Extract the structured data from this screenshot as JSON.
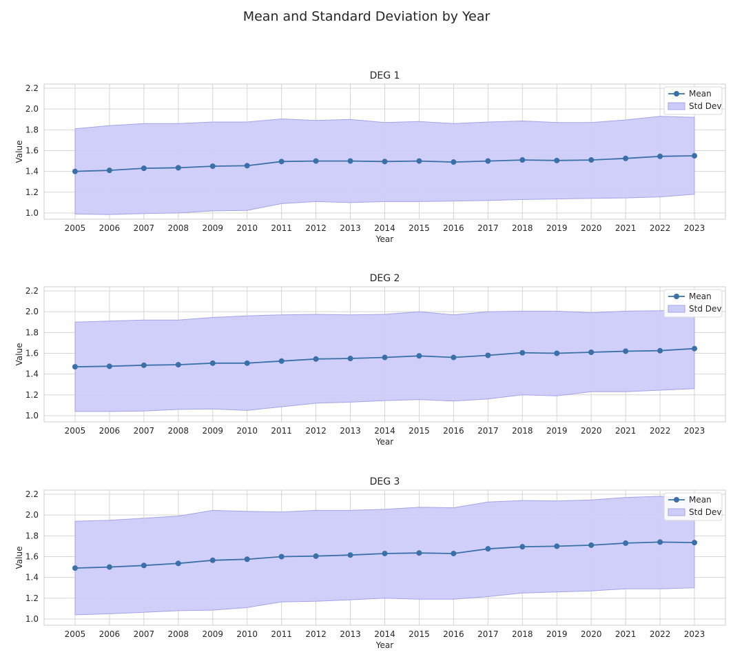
{
  "figure": {
    "title": "Mean and Standard Deviation by Year"
  },
  "colors": {
    "mean_line": "#3a6fa8",
    "std_fill": "#ccccf9",
    "std_edge": "#a3a3e6",
    "grid": "#d5d5d5",
    "axes_edge": "#cccccc"
  },
  "chart_data": [
    {
      "type": "line",
      "title": "DEG 1",
      "xlabel": "Year",
      "ylabel": "Value",
      "x": [
        2005,
        2006,
        2007,
        2008,
        2009,
        2010,
        2011,
        2012,
        2013,
        2014,
        2015,
        2016,
        2017,
        2018,
        2019,
        2020,
        2021,
        2022,
        2023
      ],
      "ylim": [
        0.94,
        2.24
      ],
      "yticks": [
        1.0,
        1.2,
        1.4,
        1.6,
        1.8,
        2.0,
        2.2
      ],
      "grid": true,
      "legend": {
        "position": "top-right",
        "entries": [
          "Mean",
          "Std Dev"
        ]
      },
      "series": [
        {
          "name": "Mean",
          "values": [
            1.4,
            1.41,
            1.43,
            1.435,
            1.45,
            1.455,
            1.495,
            1.5,
            1.5,
            1.495,
            1.5,
            1.49,
            1.5,
            1.51,
            1.505,
            1.51,
            1.525,
            1.545,
            1.55
          ]
        }
      ],
      "band": {
        "name": "Std Dev",
        "upper": [
          1.81,
          1.84,
          1.86,
          1.86,
          1.875,
          1.875,
          1.905,
          1.89,
          1.9,
          1.87,
          1.88,
          1.86,
          1.875,
          1.885,
          1.87,
          1.87,
          1.895,
          1.93,
          1.92
        ],
        "lower": [
          0.99,
          0.985,
          0.995,
          1.0,
          1.02,
          1.025,
          1.09,
          1.11,
          1.1,
          1.11,
          1.11,
          1.115,
          1.12,
          1.13,
          1.135,
          1.14,
          1.145,
          1.155,
          1.18
        ]
      }
    },
    {
      "type": "line",
      "title": "DEG 2",
      "xlabel": "Year",
      "ylabel": "Value",
      "x": [
        2005,
        2006,
        2007,
        2008,
        2009,
        2010,
        2011,
        2012,
        2013,
        2014,
        2015,
        2016,
        2017,
        2018,
        2019,
        2020,
        2021,
        2022,
        2023
      ],
      "ylim": [
        0.94,
        2.24
      ],
      "yticks": [
        1.0,
        1.2,
        1.4,
        1.6,
        1.8,
        2.0,
        2.2
      ],
      "grid": true,
      "legend": {
        "position": "top-right",
        "entries": [
          "Mean",
          "Std Dev"
        ]
      },
      "series": [
        {
          "name": "Mean",
          "values": [
            1.47,
            1.475,
            1.485,
            1.49,
            1.505,
            1.505,
            1.525,
            1.545,
            1.55,
            1.56,
            1.575,
            1.56,
            1.58,
            1.605,
            1.6,
            1.61,
            1.62,
            1.625,
            1.645
          ]
        }
      ],
      "band": {
        "name": "Std Dev",
        "upper": [
          1.9,
          1.91,
          1.92,
          1.92,
          1.945,
          1.96,
          1.97,
          1.975,
          1.97,
          1.975,
          2.0,
          1.97,
          2.0,
          2.005,
          2.005,
          1.99,
          2.005,
          2.01,
          2.025
        ],
        "lower": [
          1.04,
          1.04,
          1.045,
          1.06,
          1.065,
          1.05,
          1.085,
          1.12,
          1.13,
          1.145,
          1.155,
          1.14,
          1.16,
          1.2,
          1.19,
          1.23,
          1.23,
          1.245,
          1.26
        ]
      }
    },
    {
      "type": "line",
      "title": "DEG 3",
      "xlabel": "Year",
      "ylabel": "Value",
      "x": [
        2005,
        2006,
        2007,
        2008,
        2009,
        2010,
        2011,
        2012,
        2013,
        2014,
        2015,
        2016,
        2017,
        2018,
        2019,
        2020,
        2021,
        2022,
        2023
      ],
      "ylim": [
        0.94,
        2.24
      ],
      "yticks": [
        1.0,
        1.2,
        1.4,
        1.6,
        1.8,
        2.0,
        2.2
      ],
      "grid": true,
      "legend": {
        "position": "top-right",
        "entries": [
          "Mean",
          "Std Dev"
        ]
      },
      "series": [
        {
          "name": "Mean",
          "values": [
            1.49,
            1.5,
            1.515,
            1.535,
            1.565,
            1.575,
            1.6,
            1.605,
            1.615,
            1.63,
            1.635,
            1.63,
            1.675,
            1.695,
            1.7,
            1.71,
            1.73,
            1.74,
            1.735
          ]
        }
      ],
      "band": {
        "name": "Std Dev",
        "upper": [
          1.94,
          1.95,
          1.97,
          1.99,
          2.045,
          2.035,
          2.03,
          2.045,
          2.045,
          2.055,
          2.075,
          2.07,
          2.125,
          2.14,
          2.135,
          2.145,
          2.17,
          2.18,
          2.17
        ],
        "lower": [
          1.04,
          1.05,
          1.065,
          1.08,
          1.085,
          1.11,
          1.165,
          1.17,
          1.185,
          1.2,
          1.19,
          1.19,
          1.215,
          1.25,
          1.26,
          1.27,
          1.29,
          1.29,
          1.3
        ]
      }
    }
  ]
}
